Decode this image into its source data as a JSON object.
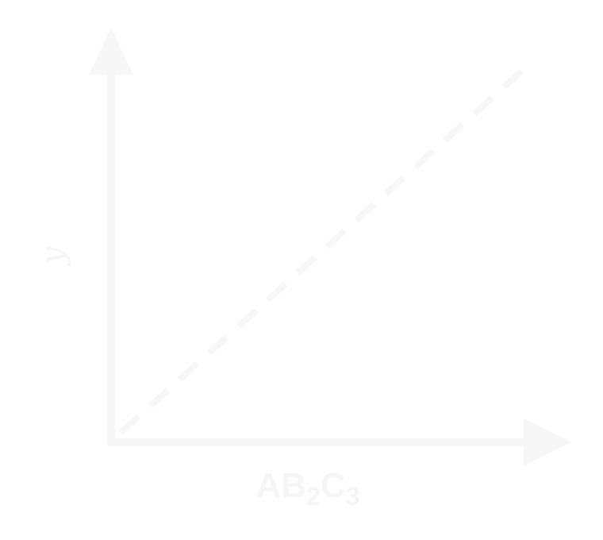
{
  "diagram": {
    "y_axis_label": "y",
    "x_axis_label": {
      "parts": [
        {
          "text": "AB",
          "sub": false
        },
        {
          "text": "2",
          "sub": true
        },
        {
          "text": "C",
          "sub": false
        },
        {
          "text": "3",
          "sub": true
        }
      ]
    },
    "trend_line": {
      "style": "dashed"
    },
    "colors": {
      "background": "#ffffff",
      "foreground": "#f7f7f7"
    }
  }
}
